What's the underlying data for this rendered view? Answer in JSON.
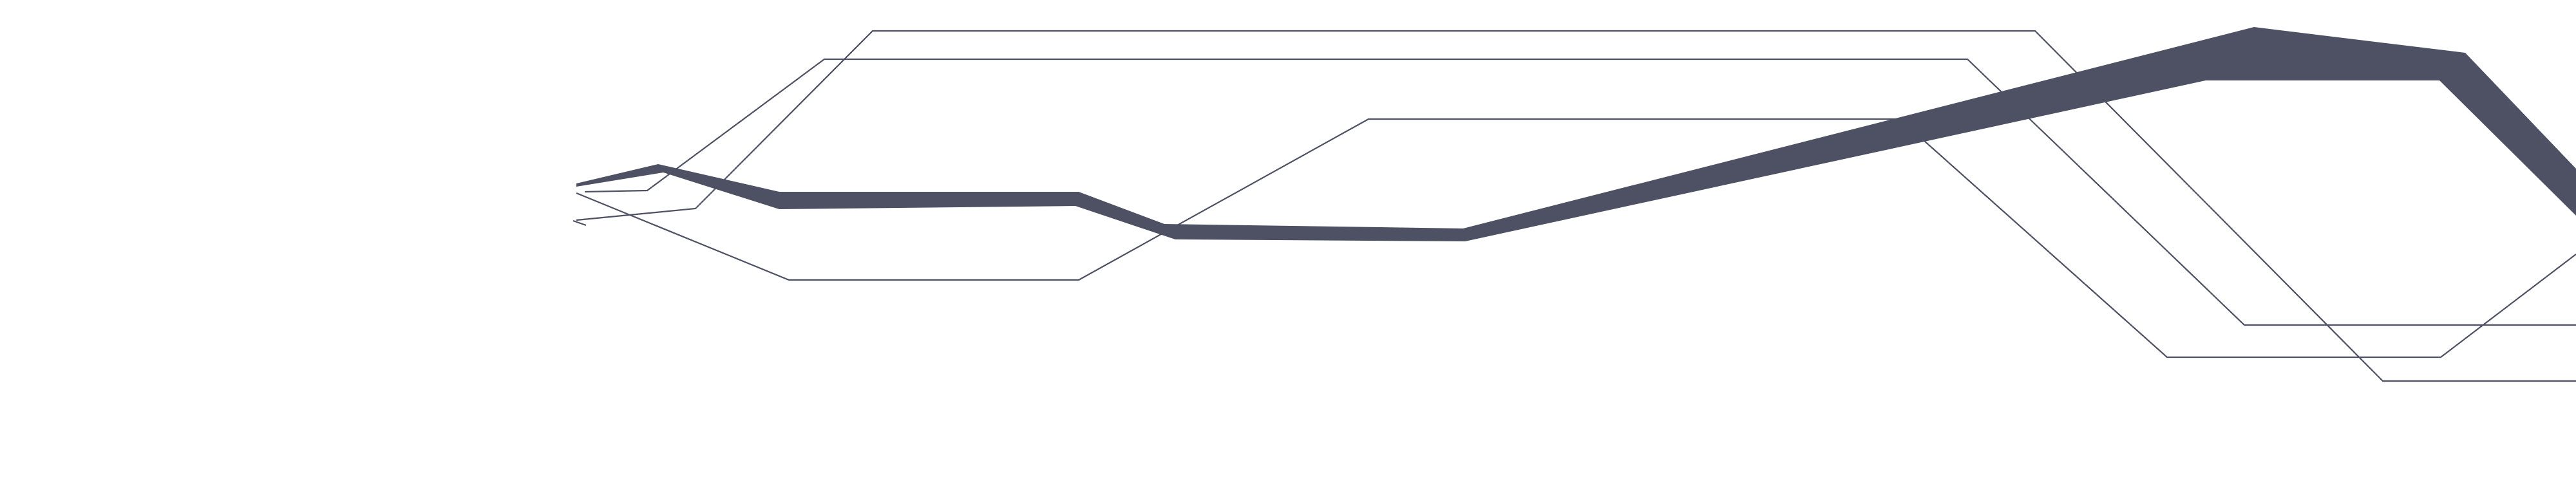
{
  "colors": {
    "background": "#ffffff",
    "line": "#4d5163",
    "band": "#4d5163"
  },
  "elements": {
    "band": "dark-ribbon-band",
    "lines": [
      "line-a",
      "line-b",
      "line-c",
      "line-d"
    ]
  }
}
